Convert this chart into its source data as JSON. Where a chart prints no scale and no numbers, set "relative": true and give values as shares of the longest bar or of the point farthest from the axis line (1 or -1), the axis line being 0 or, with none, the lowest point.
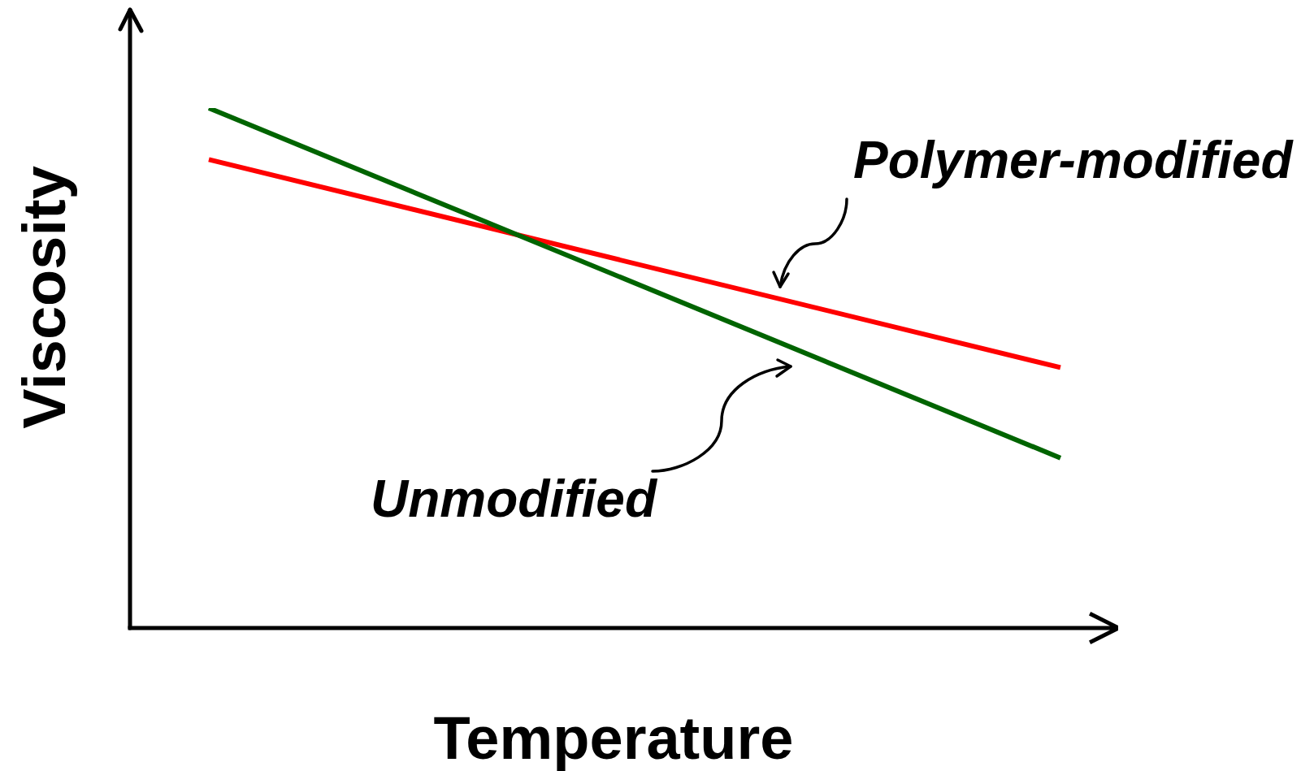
{
  "chart_data": {
    "type": "line",
    "xlabel": "Temperature",
    "ylabel": "Viscosity",
    "relative": true,
    "categories": [
      null,
      null
    ],
    "series": [
      {
        "name": "Unmodified",
        "color": "#006400",
        "values": [
          1,
          0.327
        ]
      },
      {
        "name": "Polymer-modified",
        "color": "#ff0000",
        "values": [
          0.901,
          0.501
        ]
      }
    ]
  }
}
